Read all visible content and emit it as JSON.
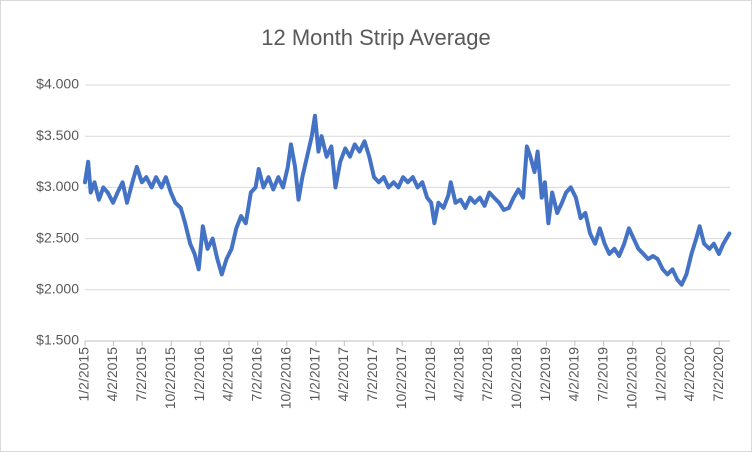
{
  "chart_data": {
    "type": "line",
    "title": "12 Month Strip Average",
    "x": [
      "2015-01-02",
      "2015-01-12",
      "2015-01-20",
      "2015-02-01",
      "2015-02-15",
      "2015-03-01",
      "2015-03-15",
      "2015-04-01",
      "2015-04-15",
      "2015-05-01",
      "2015-05-15",
      "2015-06-01",
      "2015-06-15",
      "2015-07-01",
      "2015-07-15",
      "2015-08-01",
      "2015-08-15",
      "2015-09-01",
      "2015-09-15",
      "2015-10-01",
      "2015-10-15",
      "2015-11-01",
      "2015-11-15",
      "2015-12-01",
      "2015-12-15",
      "2015-12-28",
      "2016-01-10",
      "2016-01-25",
      "2016-02-10",
      "2016-02-25",
      "2016-03-10",
      "2016-03-25",
      "2016-04-10",
      "2016-04-25",
      "2016-05-10",
      "2016-05-25",
      "2016-06-10",
      "2016-06-25",
      "2016-07-05",
      "2016-07-20",
      "2016-08-05",
      "2016-08-20",
      "2016-09-05",
      "2016-09-20",
      "2016-10-05",
      "2016-10-15",
      "2016-10-28",
      "2016-11-08",
      "2016-11-20",
      "2016-12-05",
      "2016-12-20",
      "2016-12-30",
      "2017-01-10",
      "2017-01-20",
      "2017-02-05",
      "2017-02-20",
      "2017-03-05",
      "2017-03-20",
      "2017-04-05",
      "2017-04-20",
      "2017-05-05",
      "2017-05-20",
      "2017-06-05",
      "2017-06-20",
      "2017-07-05",
      "2017-07-20",
      "2017-08-05",
      "2017-08-20",
      "2017-09-05",
      "2017-09-20",
      "2017-10-05",
      "2017-10-20",
      "2017-11-05",
      "2017-11-20",
      "2017-12-05",
      "2017-12-20",
      "2018-01-02",
      "2018-01-12",
      "2018-01-25",
      "2018-02-10",
      "2018-02-25",
      "2018-03-05",
      "2018-03-20",
      "2018-04-05",
      "2018-04-20",
      "2018-05-05",
      "2018-05-20",
      "2018-06-05",
      "2018-06-20",
      "2018-07-05",
      "2018-07-20",
      "2018-08-05",
      "2018-08-20",
      "2018-09-05",
      "2018-09-20",
      "2018-10-05",
      "2018-10-20",
      "2018-11-01",
      "2018-11-12",
      "2018-11-25",
      "2018-12-05",
      "2018-12-18",
      "2018-12-28",
      "2019-01-08",
      "2019-01-20",
      "2019-02-05",
      "2019-02-20",
      "2019-03-05",
      "2019-03-20",
      "2019-04-05",
      "2019-04-20",
      "2019-05-05",
      "2019-05-20",
      "2019-06-05",
      "2019-06-20",
      "2019-07-05",
      "2019-07-20",
      "2019-08-05",
      "2019-08-20",
      "2019-09-05",
      "2019-09-20",
      "2019-10-05",
      "2019-10-20",
      "2019-11-05",
      "2019-11-20",
      "2019-12-05",
      "2019-12-20",
      "2020-01-05",
      "2020-01-20",
      "2020-02-05",
      "2020-02-20",
      "2020-03-05",
      "2020-03-20",
      "2020-04-05",
      "2020-04-20",
      "2020-05-01",
      "2020-05-15",
      "2020-06-01",
      "2020-06-15",
      "2020-07-01",
      "2020-07-15",
      "2020-08-03"
    ],
    "series": [
      {
        "name": "12 Month Strip Average",
        "color": "#4472c4",
        "values": [
          3.05,
          3.25,
          2.95,
          3.05,
          2.88,
          3.0,
          2.95,
          2.85,
          2.95,
          3.05,
          2.85,
          3.05,
          3.2,
          3.05,
          3.1,
          3.0,
          3.1,
          3.0,
          3.1,
          2.95,
          2.85,
          2.8,
          2.65,
          2.45,
          2.35,
          2.2,
          2.62,
          2.4,
          2.5,
          2.3,
          2.15,
          2.3,
          2.4,
          2.6,
          2.72,
          2.65,
          2.95,
          3.0,
          3.18,
          3.0,
          3.1,
          2.98,
          3.1,
          3.0,
          3.2,
          3.42,
          3.2,
          2.88,
          3.1,
          3.3,
          3.5,
          3.7,
          3.35,
          3.5,
          3.3,
          3.4,
          3.0,
          3.25,
          3.38,
          3.3,
          3.42,
          3.35,
          3.45,
          3.3,
          3.1,
          3.05,
          3.1,
          3.0,
          3.05,
          3.0,
          3.1,
          3.05,
          3.1,
          3.0,
          3.05,
          2.9,
          2.85,
          2.65,
          2.85,
          2.8,
          2.92,
          3.05,
          2.85,
          2.88,
          2.8,
          2.9,
          2.85,
          2.9,
          2.82,
          2.95,
          2.9,
          2.85,
          2.78,
          2.8,
          2.9,
          2.98,
          2.9,
          3.4,
          3.3,
          3.15,
          3.35,
          2.9,
          3.05,
          2.65,
          2.95,
          2.75,
          2.85,
          2.95,
          3.0,
          2.9,
          2.7,
          2.75,
          2.55,
          2.45,
          2.6,
          2.45,
          2.35,
          2.4,
          2.33,
          2.45,
          2.6,
          2.5,
          2.4,
          2.35,
          2.3,
          2.33,
          2.3,
          2.2,
          2.15,
          2.2,
          2.1,
          2.05,
          2.15,
          2.35,
          2.5,
          2.62,
          2.45,
          2.4,
          2.45,
          2.35,
          2.45,
          2.55
        ]
      }
    ],
    "xlim": [
      "2015-01-02",
      "2020-08-05"
    ],
    "xticks": [
      {
        "value": "2015-01-02",
        "label": "1/2/2015"
      },
      {
        "value": "2015-04-02",
        "label": "4/2/2015"
      },
      {
        "value": "2015-07-02",
        "label": "7/2/2015"
      },
      {
        "value": "2015-10-02",
        "label": "10/2/2015"
      },
      {
        "value": "2016-01-02",
        "label": "1/2/2016"
      },
      {
        "value": "2016-04-02",
        "label": "4/2/2016"
      },
      {
        "value": "2016-07-02",
        "label": "7/2/2016"
      },
      {
        "value": "2016-10-02",
        "label": "10/2/2016"
      },
      {
        "value": "2017-01-02",
        "label": "1/2/2017"
      },
      {
        "value": "2017-04-02",
        "label": "4/2/2017"
      },
      {
        "value": "2017-07-02",
        "label": "7/2/2017"
      },
      {
        "value": "2017-10-02",
        "label": "10/2/2017"
      },
      {
        "value": "2018-01-02",
        "label": "1/2/2018"
      },
      {
        "value": "2018-04-02",
        "label": "4/2/2018"
      },
      {
        "value": "2018-07-02",
        "label": "7/2/2018"
      },
      {
        "value": "2018-10-02",
        "label": "10/2/2018"
      },
      {
        "value": "2019-01-02",
        "label": "1/2/2019"
      },
      {
        "value": "2019-04-02",
        "label": "4/2/2019"
      },
      {
        "value": "2019-07-02",
        "label": "7/2/2019"
      },
      {
        "value": "2019-10-02",
        "label": "10/2/2019"
      },
      {
        "value": "2020-01-02",
        "label": "1/2/2020"
      },
      {
        "value": "2020-04-02",
        "label": "4/2/2020"
      },
      {
        "value": "2020-07-02",
        "label": "7/2/2020"
      }
    ],
    "ylim": [
      1.5,
      4
    ],
    "yticks": [
      {
        "value": 1.5,
        "label": "$1.500"
      },
      {
        "value": 2,
        "label": "$2.000"
      },
      {
        "value": 2.5,
        "label": "$2.500"
      },
      {
        "value": 3,
        "label": "$3.000"
      },
      {
        "value": 3.5,
        "label": "$3.500"
      },
      {
        "value": 4,
        "label": "$4.000"
      }
    ],
    "grid": true
  }
}
